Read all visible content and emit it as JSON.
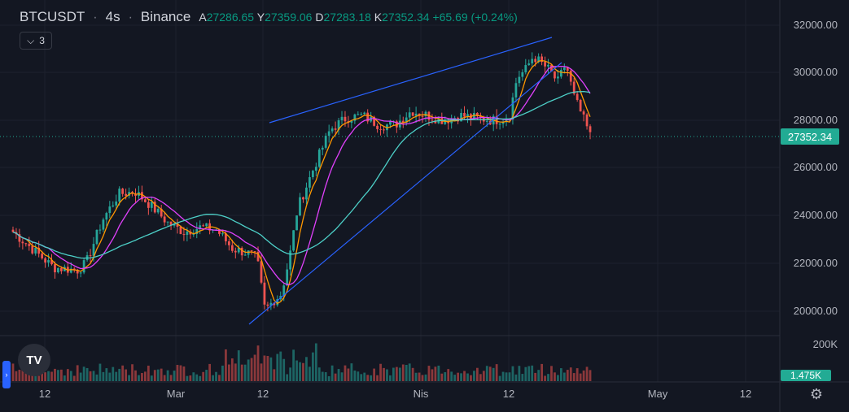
{
  "header": {
    "symbol": "BTCUSDT",
    "interval": "4s",
    "exchange": "Binance",
    "ohlc": {
      "a_label": "A",
      "a_value": "27286.65",
      "y_label": "Y",
      "y_value": "27359.06",
      "d_label": "D",
      "d_value": "27283.18",
      "k_label": "K",
      "k_value": "27352.34",
      "change": "+65.69 (+0.24%)"
    },
    "indicator_count": "3"
  },
  "price_axis": {
    "labels": [
      "32000.00",
      "30000.00",
      "28000.00",
      "26000.00",
      "24000.00",
      "22000.00",
      "20000.00"
    ],
    "current_price": "27352.34"
  },
  "volume_axis": {
    "label": "200K",
    "current_volume": "1.475K"
  },
  "time_axis": {
    "labels": [
      "12",
      "Mar",
      "12",
      "Nis",
      "12",
      "May",
      "12"
    ]
  },
  "colors": {
    "background": "#131722",
    "up": "#26a69a",
    "down": "#ef5350",
    "ma_fast": "#ff9800",
    "ma_mid": "#e040fb",
    "ma_slow": "#4dd0c8",
    "trendline": "#2962ff",
    "price_tag": "#22ab94"
  },
  "icons": {
    "logo": "tradingview-logo-icon",
    "settings": "gear-icon",
    "collapse": "chevron-down-icon"
  },
  "chart_data": {
    "type": "candlestick",
    "title": "BTCUSDT 4s Binance",
    "ylim": [
      19000,
      32500
    ],
    "y_ticks": [
      20000,
      22000,
      24000,
      26000,
      28000,
      30000,
      32000
    ],
    "x_ticks": [
      "12",
      "Mar",
      "12",
      "Nis",
      "12",
      "May",
      "12"
    ],
    "price_path": [
      [
        0,
        23300
      ],
      [
        3,
        22400
      ],
      [
        5,
        21800
      ],
      [
        8,
        21700
      ],
      [
        9,
        22000
      ],
      [
        11,
        23800
      ],
      [
        13,
        24900
      ],
      [
        15,
        25000
      ],
      [
        17,
        24400
      ],
      [
        19,
        23700
      ],
      [
        21,
        23300
      ],
      [
        23,
        23500
      ],
      [
        25,
        23400
      ],
      [
        27,
        22600
      ],
      [
        29,
        22400
      ],
      [
        30,
        22200
      ],
      [
        31,
        20000
      ],
      [
        32,
        20400
      ],
      [
        33,
        20700
      ],
      [
        34,
        22200
      ],
      [
        35,
        24300
      ],
      [
        37,
        26000
      ],
      [
        39,
        27600
      ],
      [
        41,
        28100
      ],
      [
        43,
        28200
      ],
      [
        45,
        27800
      ],
      [
        47,
        27800
      ],
      [
        49,
        28400
      ],
      [
        51,
        28200
      ],
      [
        53,
        28000
      ],
      [
        55,
        28200
      ],
      [
        57,
        28100
      ],
      [
        59,
        28000
      ],
      [
        61,
        28100
      ],
      [
        62,
        29800
      ],
      [
        63,
        30100
      ],
      [
        64,
        30700
      ],
      [
        65,
        30400
      ],
      [
        66,
        30100
      ],
      [
        67,
        29600
      ],
      [
        68,
        30400
      ],
      [
        69,
        29000
      ],
      [
        70,
        28200
      ],
      [
        71,
        27352
      ]
    ],
    "last_price": 27352.34,
    "moving_averages": [
      "fast",
      "mid",
      "slow"
    ],
    "volume_axis_max_label": "200K"
  }
}
